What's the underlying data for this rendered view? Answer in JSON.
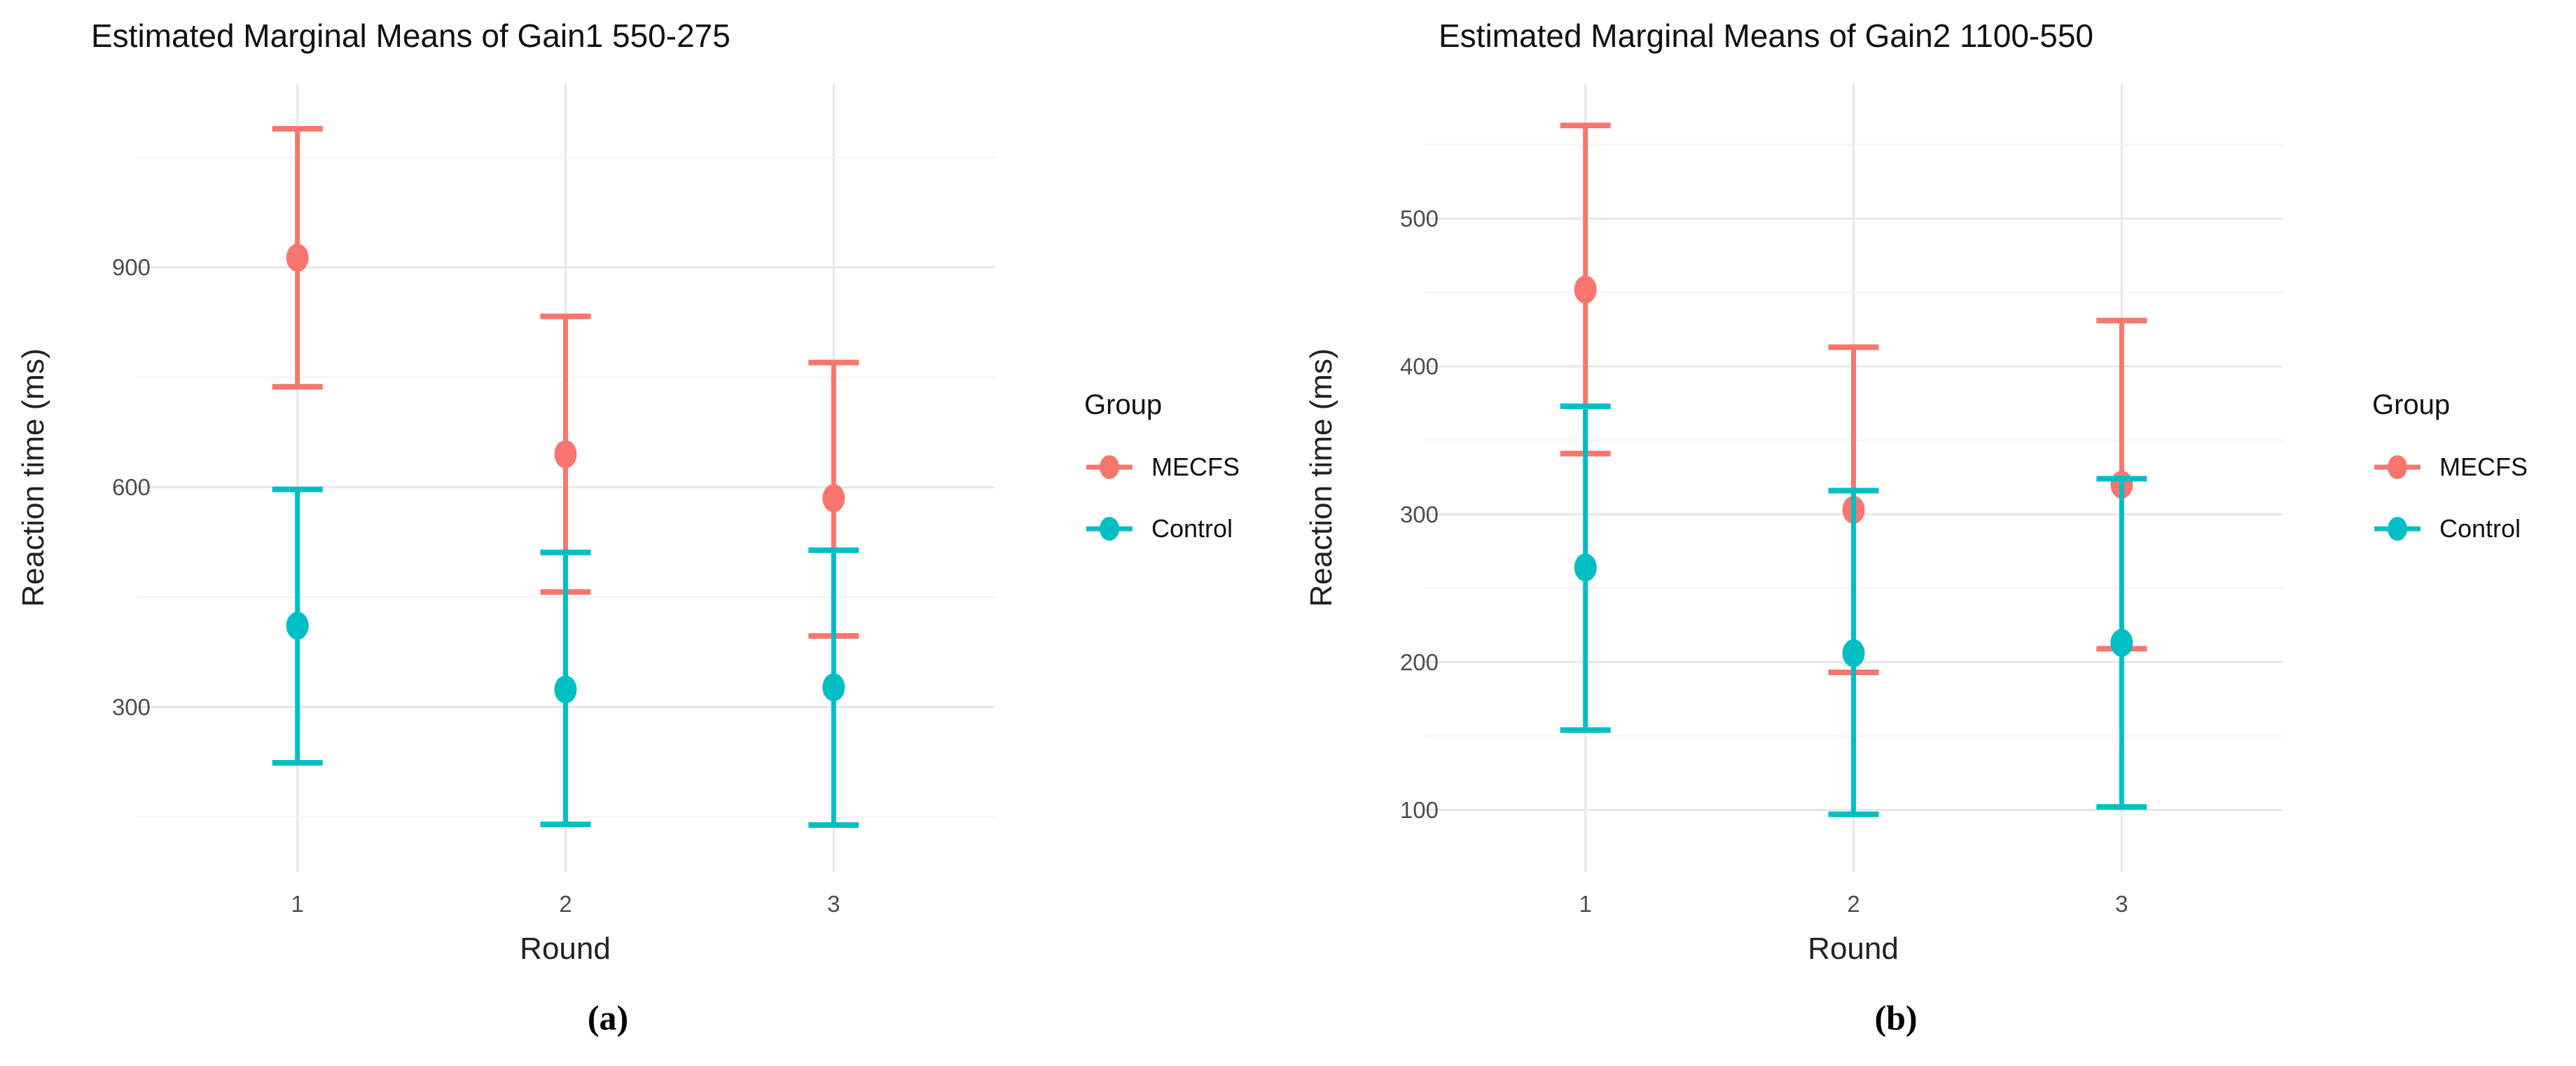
{
  "chart_data": [
    {
      "type": "scatter",
      "subtype": "pointrange-errorbar",
      "title": "Estimated Marginal Means of Gain1 550-275",
      "sublabel": "(a)",
      "xlabel": "Round",
      "ylabel": "Reaction time (ms)",
      "categories": [
        "1",
        "2",
        "3"
      ],
      "y_ticks": [
        300,
        600,
        900
      ],
      "y_minor_ticks": [
        150,
        450,
        750,
        1050
      ],
      "ylim": [
        75,
        1150
      ],
      "grid": true,
      "legend_title": "Group",
      "legend_position": "right",
      "series": [
        {
          "name": "MECFS",
          "color": "#F8766D",
          "means": [
            913,
            645,
            585
          ],
          "lower": [
            737,
            457,
            397
          ],
          "upper": [
            1089,
            833,
            770
          ]
        },
        {
          "name": "Control",
          "color": "#00BFC4",
          "means": [
            411,
            324,
            327
          ],
          "lower": [
            224,
            140,
            139
          ],
          "upper": [
            597,
            511,
            514
          ]
        }
      ]
    },
    {
      "type": "scatter",
      "subtype": "pointrange-errorbar",
      "title": "Estimated Marginal Means of Gain2 1100-550",
      "sublabel": "(b)",
      "xlabel": "Round",
      "ylabel": "Reaction time (ms)",
      "categories": [
        "1",
        "2",
        "3"
      ],
      "y_ticks": [
        100,
        200,
        300,
        400,
        500
      ],
      "y_minor_ticks": [
        150,
        250,
        350,
        450,
        550
      ],
      "ylim": [
        58,
        591
      ],
      "grid": true,
      "legend_title": "Group",
      "legend_position": "right",
      "series": [
        {
          "name": "MECFS",
          "color": "#F8766D",
          "means": [
            452,
            303,
            320
          ],
          "lower": [
            341,
            193,
            209
          ],
          "upper": [
            563,
            413,
            431
          ]
        },
        {
          "name": "Control",
          "color": "#00BFC4",
          "means": [
            264,
            206,
            213
          ],
          "lower": [
            154,
            97,
            102
          ],
          "upper": [
            373,
            316,
            324
          ]
        }
      ]
    }
  ],
  "style": {
    "background": "#ffffff",
    "grid_major_color": "#e7e7e7",
    "grid_minor_color": "#f3f3f3",
    "tick_label_color": "#4d4d4d"
  }
}
